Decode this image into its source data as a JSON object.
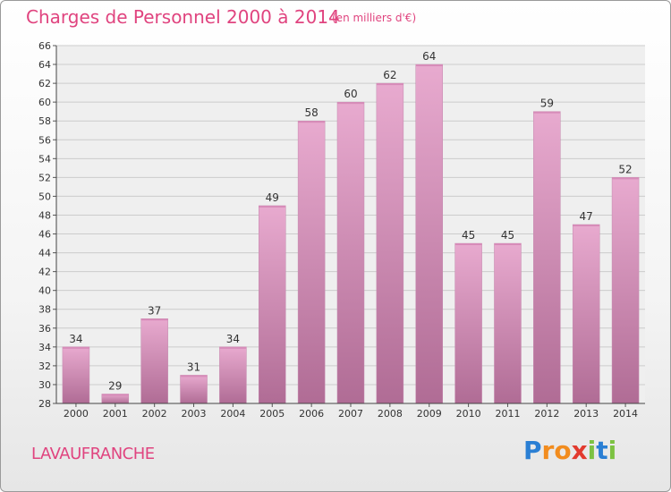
{
  "title": "Charges de Personnel 2000 à 2014",
  "subtitle": "(en milliers d'€)",
  "commune": "LAVAUFRANCHE",
  "logo": {
    "letters": [
      "P",
      "r",
      "o",
      "x",
      "i",
      "t",
      "i"
    ],
    "colors": [
      "#2a7fd4",
      "#f28c1e",
      "#f28c1e",
      "#e23a2e",
      "#7cc242",
      "#2a7fd4",
      "#7cc242"
    ]
  },
  "colors": {
    "bar_light": "#e8aacf",
    "bar_dark": "#b06c95",
    "accent": "#e0447f",
    "grid": "#cccccc"
  },
  "chart_data": {
    "type": "bar",
    "categories": [
      "2000",
      "2001",
      "2002",
      "2003",
      "2004",
      "2005",
      "2006",
      "2007",
      "2008",
      "2009",
      "2010",
      "2011",
      "2012",
      "2013",
      "2014"
    ],
    "values": [
      34,
      29,
      37,
      31,
      34,
      49,
      58,
      60,
      62,
      64,
      45,
      45,
      59,
      47,
      52
    ],
    "ylim": [
      28,
      66
    ],
    "yticks": [
      28,
      30,
      32,
      34,
      36,
      38,
      40,
      42,
      44,
      46,
      48,
      50,
      52,
      54,
      56,
      58,
      60,
      62,
      64,
      66
    ],
    "grid": true,
    "data_labels": true
  }
}
